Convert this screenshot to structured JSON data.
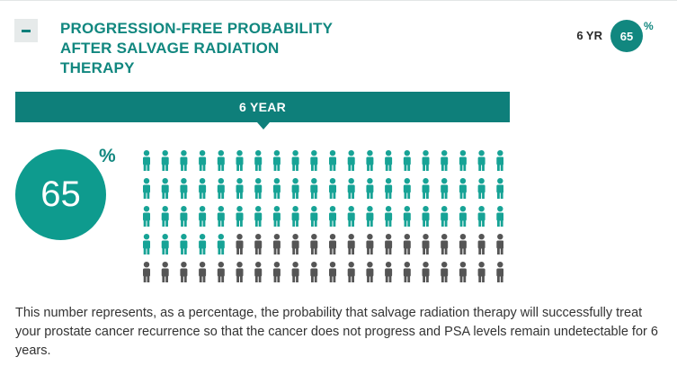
{
  "section": {
    "title": "PROGRESSION-FREE PROBABILITY AFTER SALVAGE RADIATION THERAPY",
    "collapse_icon": "minus-icon"
  },
  "summary": {
    "label": "6 YR",
    "value": "65",
    "percent_sign": "%"
  },
  "timeframe": {
    "label": "6 YEAR"
  },
  "result": {
    "value": "65",
    "percent_sign": "%"
  },
  "pictogram": {
    "icon": "person-icon",
    "total": 100,
    "highlighted": 65,
    "columns": 20,
    "highlight_color": "#17a396",
    "base_color": "#555555"
  },
  "description": "This number represents, as a percentage, the probability that salvage radiation therapy will successfully treat your prostate cancer recurrence so that the cancer does not progress and PSA levels remain undetectable for 6 years."
}
